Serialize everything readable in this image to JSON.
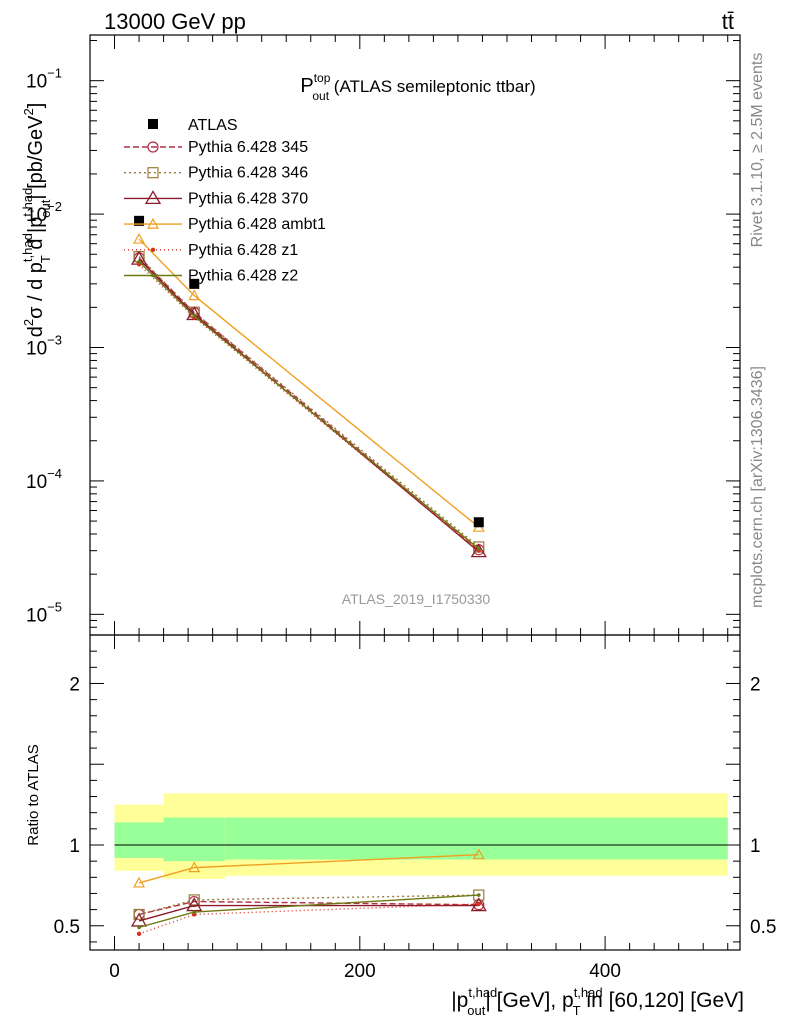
{
  "header": {
    "left_label": "13000 GeV pp",
    "right_label": "tt̄"
  },
  "side_labels": {
    "rivet": "Rivet 3.1.10, ≥ 2.5M events",
    "mcplots": "mcplots.cern.ch [arXiv:1306.3436]"
  },
  "chart_data": [
    {
      "type": "line",
      "panel": "main",
      "title": {
        "base": "P",
        "sup": "top",
        "sub": "out",
        "rest": " (ATLAS semileptonic ttbar)"
      },
      "ylabel": {
        "p1": "d",
        "p1_sup": "2",
        "p2": "σ / d p",
        "p2_sup": "t,had",
        "p2_sub": "T",
        "p3": " d |p",
        "p3_sup": "t,had",
        "p3_sub": "out",
        "p4": "| [pb/GeV",
        "p4_sup": "2",
        "p5": "]"
      },
      "y_scale": "log",
      "ylim": [
        7e-06,
        0.22
      ],
      "xlim": [
        -20,
        510
      ],
      "y_ticks": [
        {
          "value": 1e-05,
          "base": "10",
          "exp": "−5"
        },
        {
          "value": 0.0001,
          "base": "10",
          "exp": "−4"
        },
        {
          "value": 0.001,
          "base": "10",
          "exp": "−3"
        },
        {
          "value": 0.01,
          "base": "10",
          "exp": "−2"
        },
        {
          "value": 0.1,
          "base": "10",
          "exp": "−1"
        }
      ],
      "watermark": "ATLAS_2019_I1750330",
      "legend_position": "top-left",
      "data_series": {
        "name": "ATLAS",
        "x": [
          20,
          65,
          297
        ],
        "y": [
          0.0089,
          0.003,
          4.9e-05
        ],
        "color": "#000000",
        "marker": "square-filled"
      },
      "series": [
        {
          "name": "Pythia 6.428 345",
          "x": [
            20,
            65,
            297
          ],
          "y": [
            0.0047,
            0.00183,
            3.05e-05
          ],
          "color": "#b03040",
          "dash": "6,3",
          "marker": "circle-open"
        },
        {
          "name": "Pythia 6.428 346",
          "x": [
            20,
            65,
            297
          ],
          "y": [
            0.0048,
            0.00184,
            3.2e-05
          ],
          "color": "#9a7a3a",
          "dash": "2,3",
          "marker": "square-open"
        },
        {
          "name": "Pythia 6.428 370",
          "x": [
            20,
            65,
            297
          ],
          "y": [
            0.0046,
            0.00177,
            2.95e-05
          ],
          "color": "#8b1a2c",
          "dash": "",
          "marker": "triangle-open"
        },
        {
          "name": "Pythia 6.428 ambt1",
          "x": [
            20,
            65,
            297
          ],
          "y": [
            0.0065,
            0.00245,
            4.5e-05
          ],
          "color": "#f0a020",
          "dash": "",
          "marker": "triangle-open-small"
        },
        {
          "name": "Pythia 6.428 z1",
          "x": [
            20,
            65,
            297
          ],
          "y": [
            0.0042,
            0.00168,
            3e-05
          ],
          "color": "#d63020",
          "dash": "1,3",
          "marker": "dot"
        },
        {
          "name": "Pythia 6.428 z2",
          "x": [
            20,
            65,
            297
          ],
          "y": [
            0.0044,
            0.00172,
            3.1e-05
          ],
          "color": "#6b7a10",
          "dash": "",
          "marker": "dot-small"
        }
      ]
    },
    {
      "type": "line",
      "panel": "ratio",
      "ylabel": "Ratio to ATLAS",
      "y_scale": "linear",
      "ylim": [
        0.35,
        2.3
      ],
      "xlim": [
        -20,
        510
      ],
      "y_ticks": [
        0.5,
        1,
        2
      ],
      "x_ticks": [
        0,
        200,
        400
      ],
      "xlabel": {
        "p1": "|p",
        "p1_sup": "t,had",
        "p1_sub": "out",
        "p2": "| [GeV], p",
        "p2_sup": "t,had",
        "p2_sub": "T",
        "p3": " in [60,120] [GeV]"
      },
      "reference_line": 1,
      "bands": [
        {
          "x": [
            0,
            40
          ],
          "outer": [
            0.84,
            1.25
          ],
          "inner": [
            0.92,
            1.14
          ]
        },
        {
          "x": [
            40,
            90
          ],
          "outer": [
            0.79,
            1.32
          ],
          "inner": [
            0.9,
            1.17
          ]
        },
        {
          "x": [
            90,
            500
          ],
          "outer": [
            0.81,
            1.32
          ],
          "inner": [
            0.91,
            1.17
          ]
        }
      ],
      "series": [
        {
          "name": "Pythia 6.428 345",
          "x": [
            20,
            65,
            297
          ],
          "y": [
            0.57,
            0.65,
            0.63
          ]
        },
        {
          "name": "Pythia 6.428 346",
          "x": [
            20,
            65,
            297
          ],
          "y": [
            0.57,
            0.66,
            0.69
          ]
        },
        {
          "name": "Pythia 6.428 370",
          "x": [
            20,
            65,
            297
          ],
          "y": [
            0.53,
            0.625,
            0.625
          ]
        },
        {
          "name": "Pythia 6.428 ambt1",
          "x": [
            20,
            65,
            297
          ],
          "y": [
            0.765,
            0.86,
            0.94
          ]
        },
        {
          "name": "Pythia 6.428 z1",
          "x": [
            20,
            65,
            297
          ],
          "y": [
            0.45,
            0.57,
            0.635
          ]
        },
        {
          "name": "Pythia 6.428 z2",
          "x": [
            20,
            65,
            297
          ],
          "y": [
            0.49,
            0.585,
            0.69
          ]
        }
      ]
    }
  ],
  "colors": {
    "band_outer": "#ffff99",
    "band_inner": "#99ff99",
    "side_label": "#888888",
    "watermark": "#999999"
  }
}
